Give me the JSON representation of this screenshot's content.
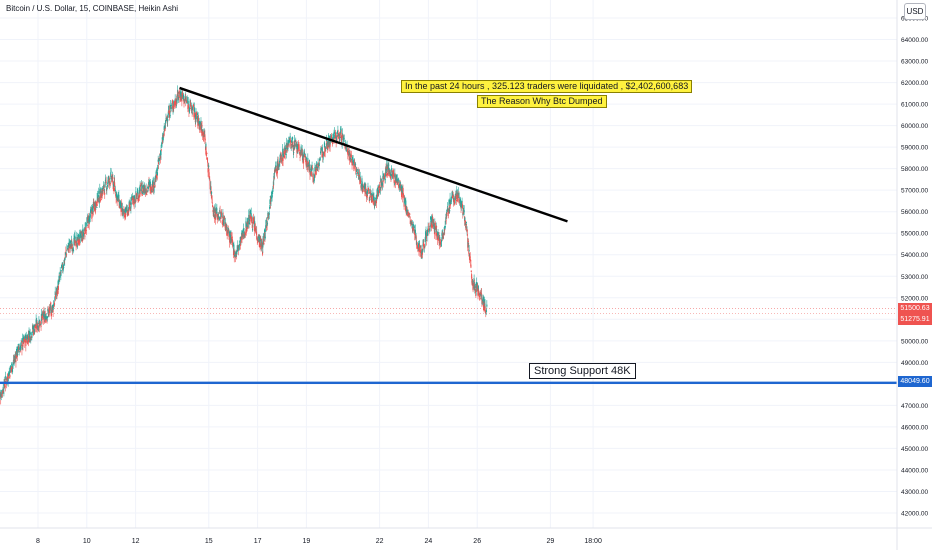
{
  "header": {
    "symbol_title": "Bitcoin / U.S. Dollar, 15, COINBASE, Heikin Ashi",
    "currency": "USD"
  },
  "annotations": {
    "liquidation_line1": "In the past 24 hours , 325.123 traders were liquidated , $2,402,600,683",
    "liquidation_line2": "The Reason Why Btc Dumped",
    "support_label": "Strong Support 48K"
  },
  "price_tags": {
    "last_price_1": "51500.63",
    "last_price_2": "51275.91",
    "support_price": "48049.60"
  },
  "colors": {
    "up": "#26a69a",
    "down": "#ef5350",
    "trendline": "#000000",
    "support_line": "#1e66d0",
    "grid": "#f0f3fa",
    "annotation_bg": "#fff23f",
    "price_tag_red": "#ef5350",
    "price_tag_blue": "#1e66d0"
  },
  "chart_data": {
    "type": "candlestick",
    "title": "Bitcoin / U.S. Dollar, 15, COINBASE, Heikin Ashi",
    "currency": "USD",
    "y_tick_labels": [
      "65000.00",
      "64000.00",
      "63000.00",
      "62000.00",
      "61000.00",
      "60000.00",
      "59000.00",
      "58000.00",
      "57000.00",
      "56000.00",
      "55000.00",
      "54000.00",
      "53000.00",
      "52000.00",
      "51000.00",
      "50000.00",
      "49000.00",
      "48000.00",
      "47000.00",
      "46000.00",
      "45000.00",
      "44000.00",
      "43000.00",
      "42000.00"
    ],
    "y_ticks": [
      65000,
      64000,
      63000,
      62000,
      61000,
      60000,
      59000,
      58000,
      57000,
      56000,
      55000,
      54000,
      53000,
      52000,
      51000,
      50000,
      49000,
      48000,
      47000,
      46000,
      45000,
      44000,
      43000,
      42000
    ],
    "ylim": [
      41200,
      65500
    ],
    "x_tick_labels": [
      "8",
      "10",
      "12",
      "15",
      "17",
      "19",
      "22",
      "24",
      "26",
      "29",
      "18:00"
    ],
    "x_tick_days": [
      8,
      10,
      12,
      15,
      17,
      19,
      22,
      24,
      26,
      29,
      30.75
    ],
    "xlim": [
      6.4,
      32.2
    ],
    "grid": true,
    "price_path": [
      {
        "day": 6.4,
        "price": 47300
      },
      {
        "day": 7.2,
        "price": 49600
      },
      {
        "day": 8.0,
        "price": 50800
      },
      {
        "day": 8.6,
        "price": 51500
      },
      {
        "day": 9.2,
        "price": 54300
      },
      {
        "day": 9.8,
        "price": 54800
      },
      {
        "day": 10.4,
        "price": 56500
      },
      {
        "day": 11.0,
        "price": 57600
      },
      {
        "day": 11.5,
        "price": 55800
      },
      {
        "day": 12.2,
        "price": 57000
      },
      {
        "day": 12.8,
        "price": 57300
      },
      {
        "day": 13.3,
        "price": 60500
      },
      {
        "day": 13.8,
        "price": 61500
      },
      {
        "day": 14.3,
        "price": 60800
      },
      {
        "day": 14.8,
        "price": 59700
      },
      {
        "day": 15.2,
        "price": 56000
      },
      {
        "day": 15.6,
        "price": 55700
      },
      {
        "day": 16.1,
        "price": 54000
      },
      {
        "day": 16.7,
        "price": 55800
      },
      {
        "day": 17.2,
        "price": 54300
      },
      {
        "day": 17.7,
        "price": 57800
      },
      {
        "day": 18.3,
        "price": 59300
      },
      {
        "day": 18.8,
        "price": 58700
      },
      {
        "day": 19.3,
        "price": 57700
      },
      {
        "day": 19.8,
        "price": 59200
      },
      {
        "day": 20.4,
        "price": 59600
      },
      {
        "day": 20.8,
        "price": 58600
      },
      {
        "day": 21.3,
        "price": 57200
      },
      {
        "day": 21.8,
        "price": 56500
      },
      {
        "day": 22.3,
        "price": 58000
      },
      {
        "day": 22.8,
        "price": 57300
      },
      {
        "day": 23.3,
        "price": 55400
      },
      {
        "day": 23.7,
        "price": 54100
      },
      {
        "day": 24.1,
        "price": 55600
      },
      {
        "day": 24.5,
        "price": 54600
      },
      {
        "day": 24.9,
        "price": 56500
      },
      {
        "day": 25.2,
        "price": 56800
      },
      {
        "day": 25.5,
        "price": 55800
      },
      {
        "day": 25.8,
        "price": 52700
      },
      {
        "day": 26.1,
        "price": 52200
      },
      {
        "day": 26.4,
        "price": 51400
      }
    ],
    "trendline": {
      "start": {
        "day": 13.8,
        "price": 61750
      },
      "end": {
        "day": 29.7,
        "price": 55550
      }
    },
    "support_level": 48049.6,
    "last_price_levels": [
      51500.63,
      51275.91
    ],
    "annotations": [
      "In the past 24 hours , 325.123 traders were liquidated , $2,402,600,683",
      "The Reason Why Btc Dumped",
      "Strong Support 48K"
    ]
  }
}
